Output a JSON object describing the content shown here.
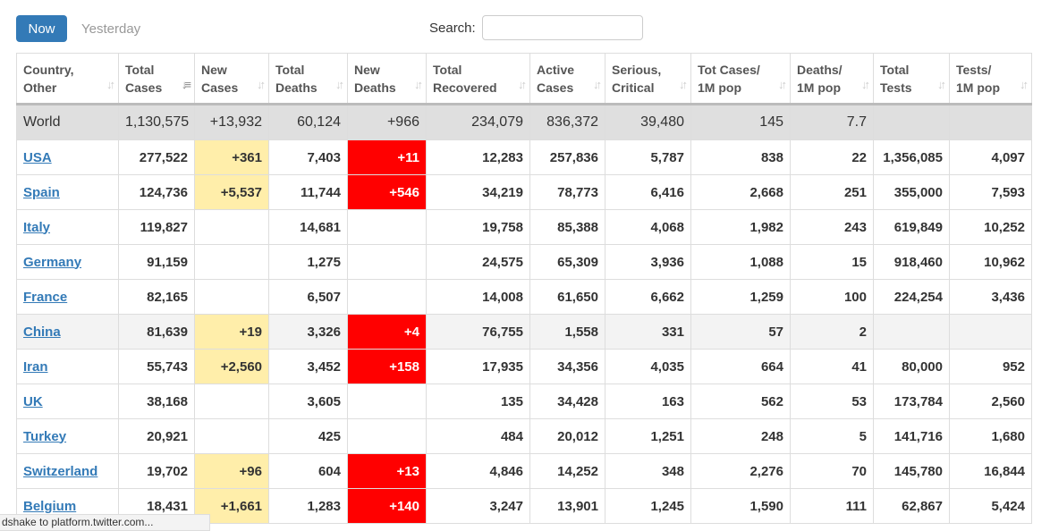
{
  "toolbar": {
    "now": "Now",
    "yesterday": "Yesterday",
    "search_label": "Search:",
    "search_value": ""
  },
  "headers": [
    [
      "Country,",
      "Other"
    ],
    [
      "Total",
      "Cases"
    ],
    [
      "New",
      "Cases"
    ],
    [
      "Total",
      "Deaths"
    ],
    [
      "New",
      "Deaths"
    ],
    [
      "Total",
      "Recovered"
    ],
    [
      "Active",
      "Cases"
    ],
    [
      "Serious,",
      "Critical"
    ],
    [
      "Tot Cases/",
      "1M pop"
    ],
    [
      "Deaths/",
      "1M pop"
    ],
    [
      "Total",
      "Tests"
    ],
    [
      "Tests/",
      "1M pop"
    ]
  ],
  "world": [
    "World",
    "1,130,575",
    "+13,932",
    "60,124",
    "+966",
    "234,079",
    "836,372",
    "39,480",
    "145",
    "7.7",
    "",
    ""
  ],
  "rows": [
    [
      "USA",
      "277,522",
      "+361",
      "7,403",
      "+11",
      "12,283",
      "257,836",
      "5,787",
      "838",
      "22",
      "1,356,085",
      "4,097"
    ],
    [
      "Spain",
      "124,736",
      "+5,537",
      "11,744",
      "+546",
      "34,219",
      "78,773",
      "6,416",
      "2,668",
      "251",
      "355,000",
      "7,593"
    ],
    [
      "Italy",
      "119,827",
      "",
      "14,681",
      "",
      "19,758",
      "85,388",
      "4,068",
      "1,982",
      "243",
      "619,849",
      "10,252"
    ],
    [
      "Germany",
      "91,159",
      "",
      "1,275",
      "",
      "24,575",
      "65,309",
      "3,936",
      "1,088",
      "15",
      "918,460",
      "10,962"
    ],
    [
      "France",
      "82,165",
      "",
      "6,507",
      "",
      "14,008",
      "61,650",
      "6,662",
      "1,259",
      "100",
      "224,254",
      "3,436"
    ],
    [
      "China",
      "81,639",
      "+19",
      "3,326",
      "+4",
      "76,755",
      "1,558",
      "331",
      "57",
      "2",
      "",
      ""
    ],
    [
      "Iran",
      "55,743",
      "+2,560",
      "3,452",
      "+158",
      "17,935",
      "34,356",
      "4,035",
      "664",
      "41",
      "80,000",
      "952"
    ],
    [
      "UK",
      "38,168",
      "",
      "3,605",
      "",
      "135",
      "34,428",
      "163",
      "562",
      "53",
      "173,784",
      "2,560"
    ],
    [
      "Turkey",
      "20,921",
      "",
      "425",
      "",
      "484",
      "20,012",
      "1,251",
      "248",
      "5",
      "141,716",
      "1,680"
    ],
    [
      "Switzerland",
      "19,702",
      "+96",
      "604",
      "+13",
      "4,846",
      "14,252",
      "348",
      "2,276",
      "70",
      "145,780",
      "16,844"
    ],
    [
      "Belgium",
      "18,431",
      "+1,661",
      "1,283",
      "+140",
      "3,247",
      "13,901",
      "1,245",
      "1,590",
      "111",
      "62,867",
      "5,424"
    ]
  ],
  "status_bar": "dshake to platform.twitter.com..."
}
